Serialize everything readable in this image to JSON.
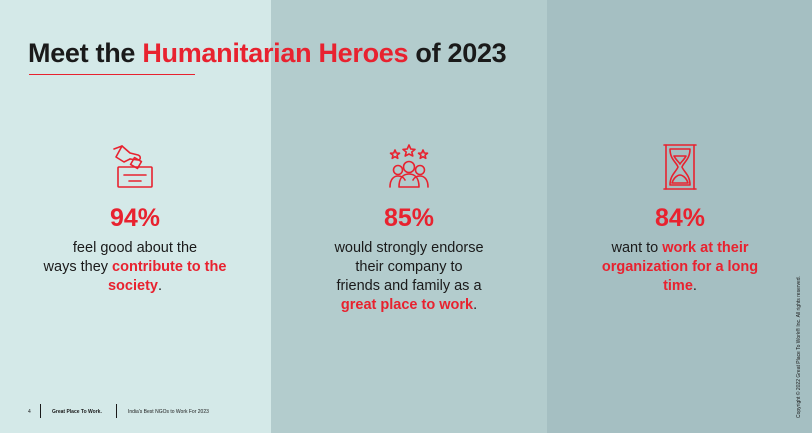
{
  "title": {
    "part1": "Meet the ",
    "highlight": "Humanitarian Heroes",
    "part2": " of 2023"
  },
  "stats": [
    {
      "icon": "donation-box-icon",
      "percent": "94%",
      "line1": "feel good about the",
      "line2": "ways they ",
      "highlight": "contribute to the society",
      "end": "."
    },
    {
      "icon": "team-stars-icon",
      "percent": "85%",
      "line1": "would strongly endorse",
      "line2": "their company to",
      "line3": "friends and family as a",
      "highlight": "great place to work",
      "end": "."
    },
    {
      "icon": "hourglass-icon",
      "percent": "84%",
      "line1": "want to ",
      "highlight": "work at their organization for a long time",
      "end": "."
    }
  ],
  "footer": {
    "page_number": "4",
    "brand": "Great Place To Work.",
    "report": "India's Best NGOs to Work For 2023"
  },
  "copyright": "Copyright © 2022 Great Place To Work® Inc. All rights reserved.",
  "colors": {
    "accent": "#e8222f",
    "panel1": "#d4e9e8",
    "panel2": "#b3cccd",
    "panel3": "#a5bfc2"
  }
}
